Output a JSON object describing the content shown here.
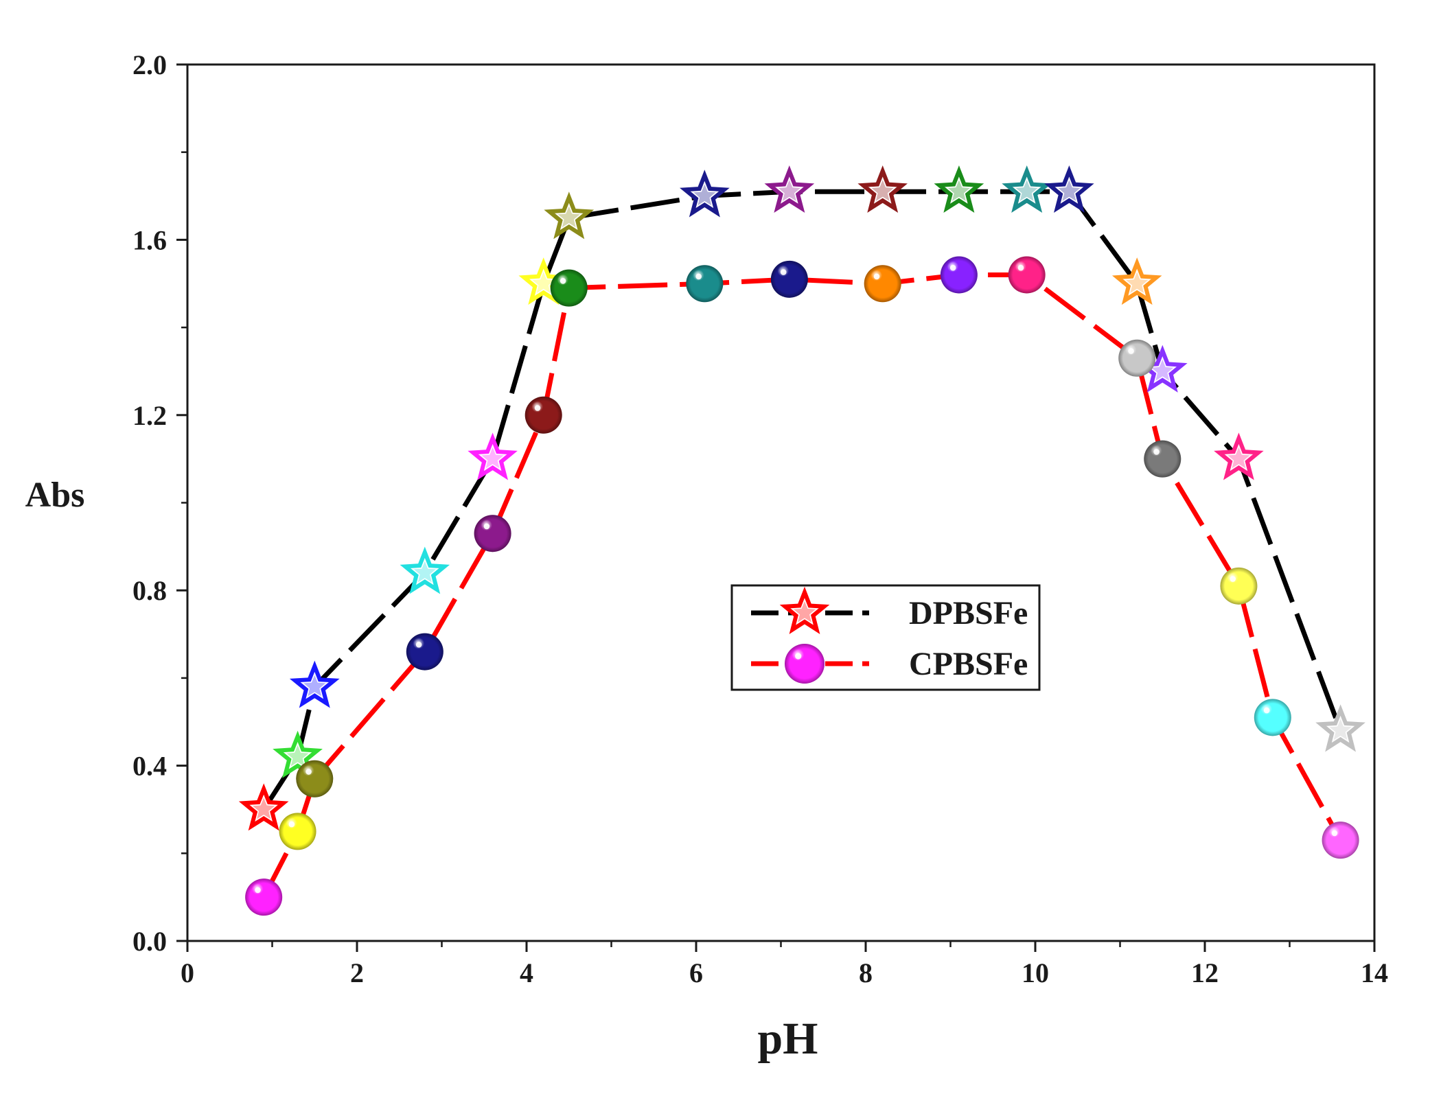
{
  "chart_data": {
    "type": "line",
    "title": "",
    "xlabel": "pH",
    "ylabel": "Abs",
    "xlim": [
      0,
      14
    ],
    "ylim": [
      0.0,
      2.0
    ],
    "x_ticks": [
      0,
      2,
      4,
      6,
      8,
      10,
      12,
      14
    ],
    "x_tick_labels": [
      "0",
      "2",
      "4",
      "6",
      "8",
      "10",
      "12",
      "14"
    ],
    "y_ticks": [
      0.0,
      0.4,
      0.8,
      1.2,
      1.6,
      2.0
    ],
    "y_tick_labels": [
      "0.0",
      "0.4",
      "0.8",
      "1.2",
      "1.6",
      "2.0"
    ],
    "grid": false,
    "legend_position": "center-right",
    "series": [
      {
        "name": "DPBSFe",
        "marker": "star",
        "line_color": "#000000",
        "line_style": "dashed",
        "legend_marker_color": "#ff0000",
        "x": [
          0.9,
          1.3,
          1.5,
          2.8,
          3.6,
          4.2,
          4.5,
          6.1,
          7.1,
          8.2,
          9.1,
          9.9,
          10.4,
          11.2,
          11.5,
          12.4,
          13.6
        ],
        "y": [
          0.3,
          0.42,
          0.58,
          0.84,
          1.1,
          1.5,
          1.65,
          1.7,
          1.71,
          1.71,
          1.71,
          1.71,
          1.71,
          1.5,
          1.3,
          1.1,
          0.48
        ],
        "point_colors": [
          "#ff0000",
          "#33dd33",
          "#1a1aff",
          "#22e0e0",
          "#ff22ff",
          "#ffff22",
          "#8c8c1a",
          "#1a1a8c",
          "#8c1a8c",
          "#8c1a1a",
          "#1a8c1a",
          "#1a8c8c",
          "#1a1a8c",
          "#ff9922",
          "#8833ff",
          "#ff2288",
          "#c0c0c0"
        ]
      },
      {
        "name": "CPBSFe",
        "marker": "sphere",
        "line_color": "#ff0000",
        "line_style": "dashed",
        "legend_marker_color": "#ff22ff",
        "x": [
          0.9,
          1.3,
          1.5,
          2.8,
          3.6,
          4.2,
          4.5,
          6.1,
          7.1,
          8.2,
          9.1,
          9.9,
          11.2,
          11.5,
          12.4,
          12.8,
          13.6
        ],
        "y": [
          0.1,
          0.25,
          0.37,
          0.66,
          0.93,
          1.2,
          1.49,
          1.5,
          1.51,
          1.5,
          1.52,
          1.52,
          1.33,
          1.1,
          0.81,
          0.51,
          0.23
        ],
        "point_colors": [
          "#ff22ff",
          "#ffff22",
          "#8c8c1a",
          "#1a1a8c",
          "#8c1a8c",
          "#8c1a1a",
          "#1a8c1a",
          "#1a8c8c",
          "#1a1a8c",
          "#ff8800",
          "#8822ff",
          "#ff2288",
          "#c8c8c8",
          "#7a7a7a",
          "#ffff55",
          "#55ffff",
          "#ff66ff"
        ]
      }
    ]
  }
}
